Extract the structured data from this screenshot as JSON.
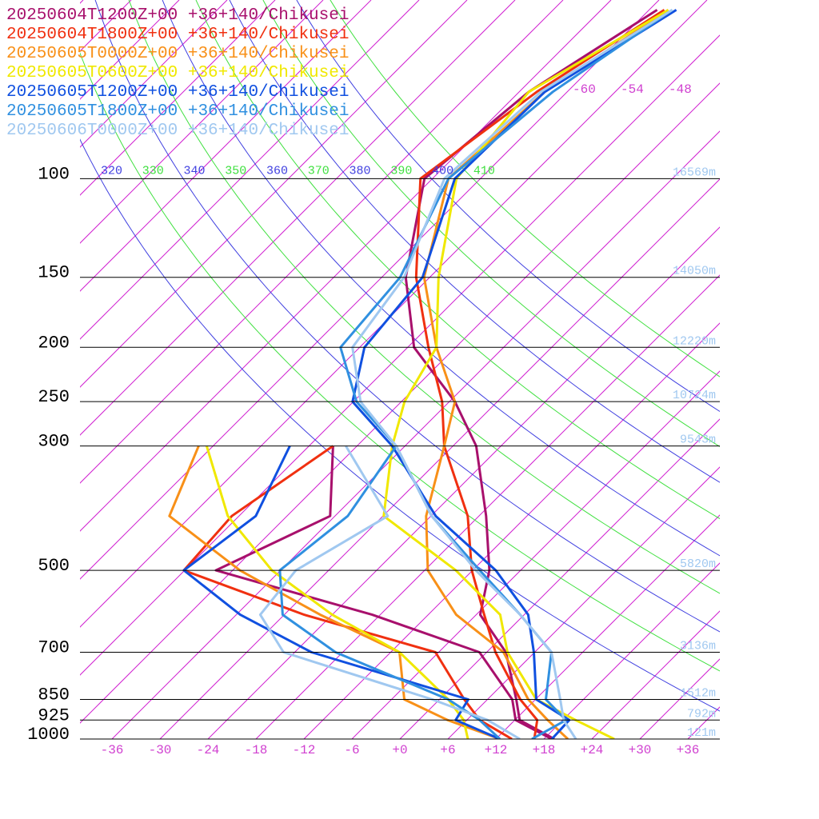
{
  "chart_data": {
    "type": "skewt",
    "pressure": [
      1000,
      925,
      850,
      700,
      600,
      500,
      400,
      300,
      250,
      200,
      150,
      100,
      70,
      50
    ],
    "yscale": "log",
    "ylim": [
      1000,
      48
    ],
    "yticks": [
      100,
      150,
      200,
      250,
      300,
      500,
      700,
      850,
      925,
      1000
    ],
    "xlim": [
      -40,
      40
    ],
    "xticks": [
      -36,
      -30,
      -24,
      -18,
      -12,
      -6,
      {
        "value": 0,
        "label": "+0"
      },
      {
        "value": 6,
        "label": "+6"
      },
      {
        "value": 12,
        "label": "+12"
      },
      {
        "value": 18,
        "label": "+18"
      },
      {
        "value": 24,
        "label": "+24"
      },
      {
        "value": 30,
        "label": "+30"
      },
      {
        "value": 36,
        "label": "+36"
      }
    ],
    "xticks_top": [
      -60,
      -54,
      -48
    ],
    "isotherm_color": "#d020d0",
    "isentropes": [
      320,
      330,
      340,
      350,
      360,
      370,
      380,
      390,
      400,
      410
    ],
    "isentrope_colors": [
      "#4040e0",
      "#40e040"
    ],
    "height_labels": [
      {
        "pressure": 100,
        "label": "16569m"
      },
      {
        "pressure": 150,
        "label": "14050m"
      },
      {
        "pressure": 200,
        "label": "12220m"
      },
      {
        "pressure": 250,
        "label": "10724m"
      },
      {
        "pressure": 300,
        "label": "9543m"
      },
      {
        "pressure": 500,
        "label": "5820m"
      },
      {
        "pressure": 700,
        "label": "3136m"
      },
      {
        "pressure": 850,
        "label": "1512m"
      },
      {
        "pressure": 925,
        "label": "792m"
      },
      {
        "pressure": 1000,
        "label": "121m"
      }
    ],
    "series": [
      {
        "name": "20250604T1200Z+00 +36+140/Chikusei",
        "color": "#a8106c",
        "temperature": [
          19.3,
          12.6,
          9.6,
          2.4,
          -5.5,
          -9.9,
          -17.1,
          -27.1,
          -35.3,
          -47.2,
          -57,
          -67,
          -64.8,
          -59
        ],
        "dewpoint": [
          19.0,
          12.1,
          9.1,
          -0.9,
          -19,
          -44.1,
          -36.6,
          -45,
          null,
          null,
          null,
          null,
          null,
          null
        ]
      },
      {
        "name": "20250604T1800Z+00 +36+140/Chikusei",
        "color": "#f03010",
        "temperature": [
          16.8,
          14.8,
          10.1,
          1.1,
          -5.0,
          -12.1,
          -19.4,
          -31.1,
          -36.9,
          -45.4,
          -55.7,
          -67.5,
          -63.8,
          -58.1
        ],
        "dewpoint": [
          14,
          7.6,
          3.1,
          -6.4,
          -27.5,
          -48.1,
          -48.9,
          -45,
          null,
          null,
          null,
          null,
          null,
          null
        ]
      },
      {
        "name": "20250605T0000Z+00 +36+140/Chikusei",
        "color": "#f89018",
        "temperature": [
          21,
          16.1,
          11.1,
          2.1,
          -8.5,
          -17.6,
          -24.6,
          -31.1,
          -35.3,
          -44.4,
          -54.7,
          -64,
          -62.8,
          -57.6
        ],
        "dewpoint": [
          12.5,
          3.6,
          -4.4,
          -10.9,
          -25.5,
          -41.1,
          -56.7,
          -61.8,
          null,
          null,
          null,
          null,
          null,
          null
        ]
      },
      {
        "name": "20250605T0600Z+00 +36+140/Chikusei",
        "color": "#f0e800",
        "temperature": [
          26.8,
          19.6,
          12.1,
          2.6,
          -3,
          -14.1,
          -29.9,
          -37.6,
          -41.6,
          -44.4,
          -52.9,
          -63,
          -64.8,
          -57.6
        ],
        "dewpoint": [
          8.5,
          5.6,
          1.1,
          -10.9,
          -24,
          -37.1,
          -49.4,
          -60.8,
          null,
          null,
          null,
          null,
          null,
          null
        ]
      },
      {
        "name": "20250605T1200Z+00 +36+140/Chikusei",
        "color": "#1050e0",
        "temperature": [
          19,
          18.8,
          12.1,
          5.9,
          0.5,
          -9.1,
          -23.4,
          -37.6,
          -48.1,
          -53.4,
          -54.9,
          -63.2,
          -62.8,
          -56.6
        ],
        "dewpoint": [
          12.5,
          4.6,
          3.6,
          -21.9,
          -35.5,
          -48.1,
          -45.9,
          -50.4,
          null,
          null,
          null,
          null,
          null,
          null
        ]
      },
      {
        "name": "20250605T1800Z+00 +36+140/Chikusei",
        "color": "#3090e0",
        "temperature": [
          16.5,
          18.4,
          13.3,
          8.1,
          -0.5,
          -11.1,
          -23.9,
          -37.1,
          -47.6,
          -56.4,
          -57.7,
          -64,
          -61.8,
          -57.1
        ],
        "dewpoint": [
          12.5,
          7.6,
          1.1,
          -18.9,
          -30.2,
          -36.1,
          -34.4,
          -37.1,
          null,
          null,
          null,
          null,
          null,
          null
        ]
      },
      {
        "name": "20250606T0000Z+00 +36+140/Chikusei",
        "color": "#a0c8f0",
        "temperature": [
          22,
          18.1,
          15.1,
          8.1,
          -0.5,
          -11.6,
          -23.9,
          -37.1,
          -47.1,
          -54.9,
          -57.2,
          -64.5,
          -63.3,
          -57.1
        ],
        "dewpoint": [
          15,
          8.6,
          -0.9,
          -25.4,
          -33,
          -34.1,
          -29.4,
          -43.4,
          null,
          null,
          null,
          null,
          null,
          null
        ]
      }
    ]
  }
}
